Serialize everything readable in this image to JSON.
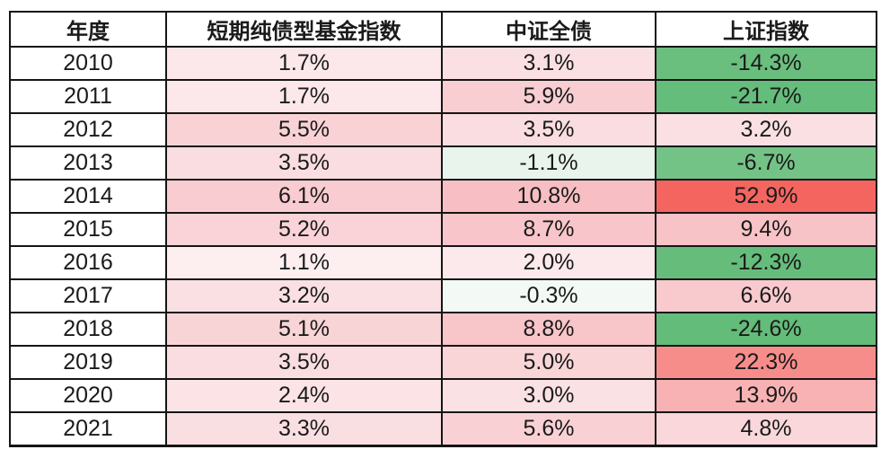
{
  "table": {
    "headers": [
      "年度",
      "短期纯债型基金指数",
      "中证全债",
      "上证指数"
    ],
    "rows": [
      {
        "year": "2010",
        "cells": [
          {
            "value": "1.7%",
            "bg": "#fce7ea"
          },
          {
            "value": "3.1%",
            "bg": "#fae0e3"
          },
          {
            "value": "-14.3%",
            "bg": "#6abf7e"
          }
        ]
      },
      {
        "year": "2011",
        "cells": [
          {
            "value": "1.7%",
            "bg": "#fce7ea"
          },
          {
            "value": "5.9%",
            "bg": "#f8ced2"
          },
          {
            "value": "-21.7%",
            "bg": "#65bd7b"
          }
        ]
      },
      {
        "year": "2012",
        "cells": [
          {
            "value": "5.5%",
            "bg": "#f9d2d5"
          },
          {
            "value": "3.5%",
            "bg": "#fadde0"
          },
          {
            "value": "3.2%",
            "bg": "#fae0e2"
          }
        ]
      },
      {
        "year": "2013",
        "cells": [
          {
            "value": "3.5%",
            "bg": "#fadde0"
          },
          {
            "value": "-1.1%",
            "bg": "#e8f4ec"
          },
          {
            "value": "-6.7%",
            "bg": "#74c386"
          }
        ]
      },
      {
        "year": "2014",
        "cells": [
          {
            "value": "6.1%",
            "bg": "#f8ccd0"
          },
          {
            "value": "10.8%",
            "bg": "#f7bfc3"
          },
          {
            "value": "52.9%",
            "bg": "#f5655f"
          }
        ]
      },
      {
        "year": "2015",
        "cells": [
          {
            "value": "5.2%",
            "bg": "#f9d3d7"
          },
          {
            "value": "8.7%",
            "bg": "#f8c6ca"
          },
          {
            "value": "9.4%",
            "bg": "#f8c3c7"
          }
        ]
      },
      {
        "year": "2016",
        "cells": [
          {
            "value": "1.1%",
            "bg": "#fdeef0"
          },
          {
            "value": "2.0%",
            "bg": "#fce9eb"
          },
          {
            "value": "-12.3%",
            "bg": "#66bd7b"
          }
        ]
      },
      {
        "year": "2017",
        "cells": [
          {
            "value": "3.2%",
            "bg": "#fae0e2"
          },
          {
            "value": "-0.3%",
            "bg": "#f3f9f5"
          },
          {
            "value": "6.6%",
            "bg": "#f8cace"
          }
        ]
      },
      {
        "year": "2018",
        "cells": [
          {
            "value": "5.1%",
            "bg": "#f9d4d7"
          },
          {
            "value": "8.8%",
            "bg": "#f8c5c9"
          },
          {
            "value": "-24.6%",
            "bg": "#63bc79"
          }
        ]
      },
      {
        "year": "2019",
        "cells": [
          {
            "value": "3.5%",
            "bg": "#fadde0"
          },
          {
            "value": "5.0%",
            "bg": "#f9d5d8"
          },
          {
            "value": "22.3%",
            "bg": "#f78d8b"
          }
        ]
      },
      {
        "year": "2020",
        "cells": [
          {
            "value": "2.4%",
            "bg": "#fbe3e6"
          },
          {
            "value": "3.0%",
            "bg": "#fae1e4"
          },
          {
            "value": "13.9%",
            "bg": "#f9b2b3"
          }
        ]
      },
      {
        "year": "2021",
        "cells": [
          {
            "value": "3.3%",
            "bg": "#fadfe2"
          },
          {
            "value": "5.6%",
            "bg": "#f9d1d5"
          },
          {
            "value": "4.8%",
            "bg": "#f9d7da"
          }
        ]
      }
    ]
  },
  "colors": {
    "border": "#151515",
    "positive_strong": "#f5655f",
    "positive_light": "#fce7ea",
    "negative_strong": "#63bc79",
    "negative_light": "#e8f4ec",
    "text": "#1a1a1a"
  },
  "chart_data": {
    "type": "table",
    "title": "",
    "columns": [
      "年度",
      "短期纯债型基金指数",
      "中证全债",
      "上证指数"
    ],
    "categories": [
      2010,
      2011,
      2012,
      2013,
      2014,
      2015,
      2016,
      2017,
      2018,
      2019,
      2020,
      2021
    ],
    "unit": "%",
    "series": [
      {
        "name": "短期纯债型基金指数",
        "values": [
          1.7,
          1.7,
          5.5,
          3.5,
          6.1,
          5.2,
          1.1,
          3.2,
          5.1,
          3.5,
          2.4,
          3.3
        ]
      },
      {
        "name": "中证全债",
        "values": [
          3.1,
          5.9,
          3.5,
          -1.1,
          10.8,
          8.7,
          2.0,
          -0.3,
          8.8,
          5.0,
          3.0,
          5.6
        ]
      },
      {
        "name": "上证指数",
        "values": [
          -14.3,
          -21.7,
          3.2,
          -6.7,
          52.9,
          9.4,
          -12.3,
          6.6,
          -24.6,
          22.3,
          13.9,
          4.8
        ]
      }
    ],
    "layout_hints": {
      "heatmap": "cell background shaded by value: positive = pink-to-red intensity, negative = mint-to-green intensity, near zero = white",
      "grid": "black 2px cell borders, thicker bottom outer border",
      "header_style": "bold, white background"
    }
  }
}
